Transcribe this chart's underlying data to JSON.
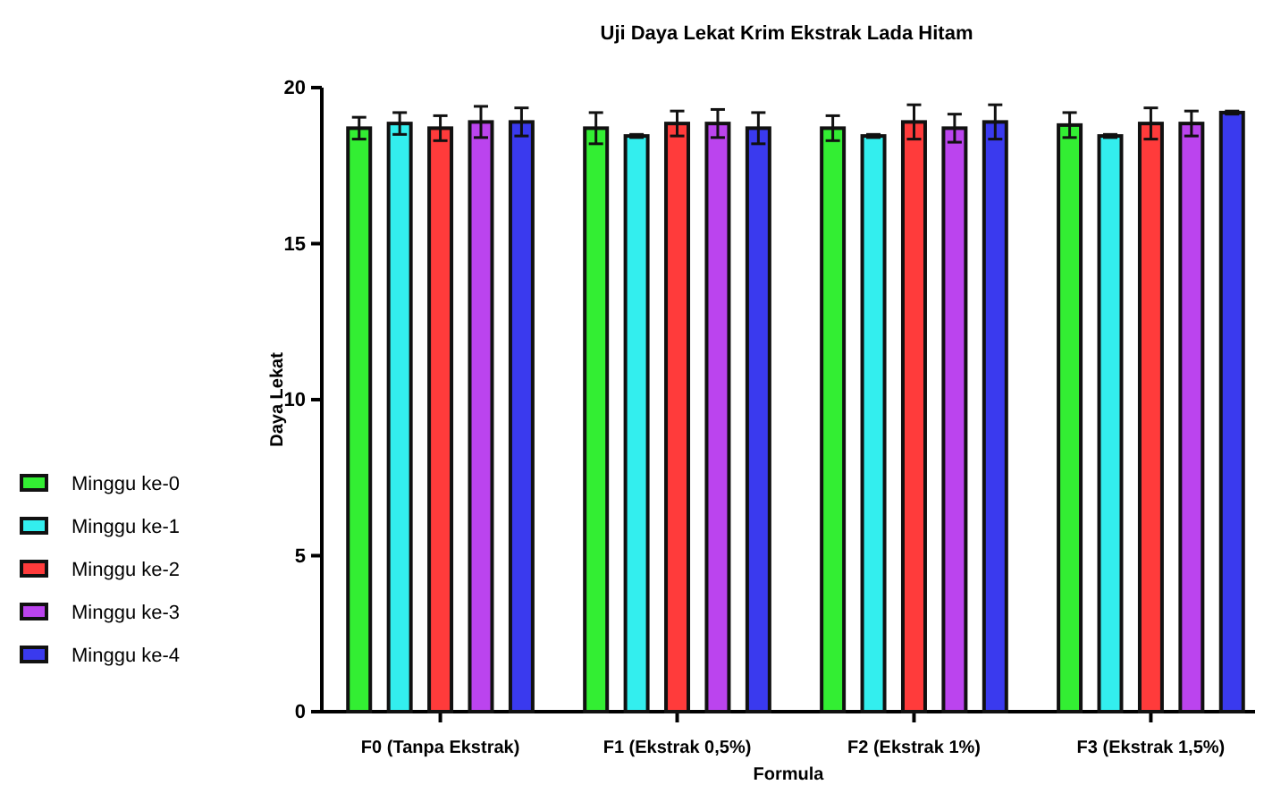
{
  "chart_data": {
    "type": "bar",
    "title": "Uji Daya Lekat Krim Ekstrak Lada Hitam",
    "xlabel": "Formula",
    "ylabel": "Daya Lekat",
    "categories": [
      "F0 (Tanpa Ekstrak)",
      "F1 (Ekstrak 0,5%)",
      "F2 (Ekstrak 1%)",
      "F3 (Ekstrak 1,5%)"
    ],
    "series": [
      {
        "name": "Minggu ke-0",
        "color": "#33ee33",
        "values": [
          18.7,
          18.7,
          18.7,
          18.8
        ],
        "errors": [
          0.35,
          0.5,
          0.4,
          0.4
        ]
      },
      {
        "name": "Minggu ke-1",
        "color": "#33eeee",
        "values": [
          18.85,
          18.45,
          18.45,
          18.45
        ],
        "errors": [
          0.35,
          0.05,
          0.05,
          0.05
        ]
      },
      {
        "name": "Minggu ke-2",
        "color": "#ff3b3b",
        "values": [
          18.7,
          18.85,
          18.9,
          18.85
        ],
        "errors": [
          0.4,
          0.4,
          0.55,
          0.5
        ]
      },
      {
        "name": "Minggu ke-3",
        "color": "#bb44ee",
        "values": [
          18.9,
          18.85,
          18.7,
          18.85
        ],
        "errors": [
          0.5,
          0.45,
          0.45,
          0.4
        ]
      },
      {
        "name": "Minggu ke-4",
        "color": "#3a3aee",
        "values": [
          18.9,
          18.7,
          18.9,
          19.2
        ],
        "errors": [
          0.45,
          0.5,
          0.55,
          0.05
        ]
      }
    ],
    "ylim": [
      0,
      20
    ],
    "yticks": [
      0,
      5,
      10,
      15,
      20
    ],
    "legend": "left",
    "grid": false
  }
}
